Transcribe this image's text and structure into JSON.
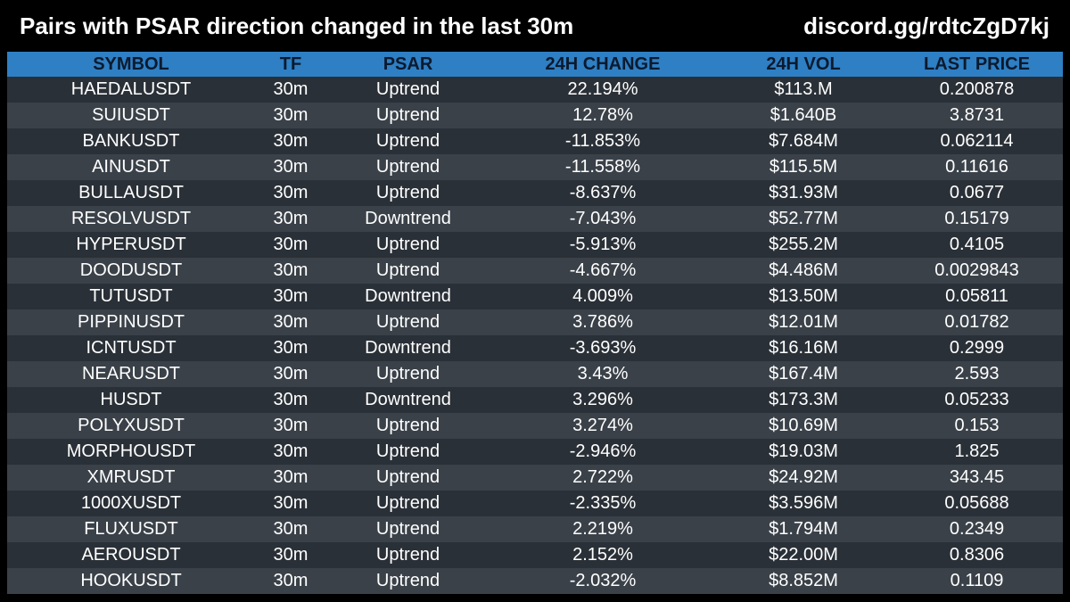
{
  "header": {
    "title": "Pairs with PSAR direction changed in the last 30m",
    "discord": "discord.gg/rdtcZgD7kj"
  },
  "table": {
    "columns": [
      "SYMBOL",
      "TF",
      "PSAR",
      "24H CHANGE",
      "24H VOL",
      "LAST PRICE"
    ],
    "rows": [
      [
        "HAEDALUSDT",
        "30m",
        "Uptrend",
        "22.194%",
        "$113.M",
        "0.200878"
      ],
      [
        "SUIUSDT",
        "30m",
        "Uptrend",
        "12.78%",
        "$1.640B",
        "3.8731"
      ],
      [
        "BANKUSDT",
        "30m",
        "Uptrend",
        "-11.853%",
        "$7.684M",
        "0.062114"
      ],
      [
        "AINUSDT",
        "30m",
        "Uptrend",
        "-11.558%",
        "$115.5M",
        "0.11616"
      ],
      [
        "BULLAUSDT",
        "30m",
        "Uptrend",
        "-8.637%",
        "$31.93M",
        "0.0677"
      ],
      [
        "RESOLVUSDT",
        "30m",
        "Downtrend",
        "-7.043%",
        "$52.77M",
        "0.15179"
      ],
      [
        "HYPERUSDT",
        "30m",
        "Uptrend",
        "-5.913%",
        "$255.2M",
        "0.4105"
      ],
      [
        "DOODUSDT",
        "30m",
        "Uptrend",
        "-4.667%",
        "$4.486M",
        "0.0029843"
      ],
      [
        "TUTUSDT",
        "30m",
        "Downtrend",
        "4.009%",
        "$13.50M",
        "0.05811"
      ],
      [
        "PIPPINUSDT",
        "30m",
        "Uptrend",
        "3.786%",
        "$12.01M",
        "0.01782"
      ],
      [
        "ICNTUSDT",
        "30m",
        "Downtrend",
        "-3.693%",
        "$16.16M",
        "0.2999"
      ],
      [
        "NEARUSDT",
        "30m",
        "Uptrend",
        "3.43%",
        "$167.4M",
        "2.593"
      ],
      [
        "HUSDT",
        "30m",
        "Downtrend",
        "3.296%",
        "$173.3M",
        "0.05233"
      ],
      [
        "POLYXUSDT",
        "30m",
        "Uptrend",
        "3.274%",
        "$10.69M",
        "0.153"
      ],
      [
        "MORPHOUSDT",
        "30m",
        "Uptrend",
        "-2.946%",
        "$19.03M",
        "1.825"
      ],
      [
        "XMRUSDT",
        "30m",
        "Uptrend",
        "2.722%",
        "$24.92M",
        "343.45"
      ],
      [
        "1000XUSDT",
        "30m",
        "Uptrend",
        "-2.335%",
        "$3.596M",
        "0.05688"
      ],
      [
        "FLUXUSDT",
        "30m",
        "Uptrend",
        "2.219%",
        "$1.794M",
        "0.2349"
      ],
      [
        "AEROUSDT",
        "30m",
        "Uptrend",
        "2.152%",
        "$22.00M",
        "0.8306"
      ],
      [
        "HOOKUSDT",
        "30m",
        "Uptrend",
        "-2.032%",
        "$8.852M",
        "0.1109"
      ]
    ]
  },
  "colors": {
    "background": "#000000",
    "header_row": "#2e7fc4",
    "row_odd": "#2a3037",
    "row_even": "#3a4149",
    "header_text": "#0b1a2e",
    "text": "#ffffff"
  }
}
